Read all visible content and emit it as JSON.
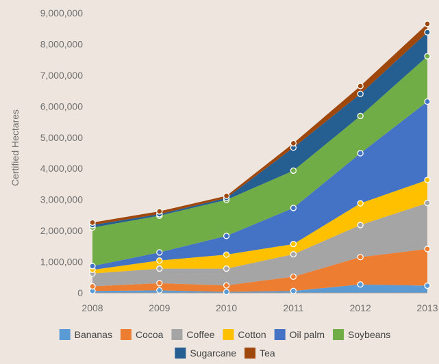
{
  "chart_data": {
    "type": "area",
    "stacked": true,
    "title": "",
    "xlabel": "",
    "ylabel": "Certified Hectares",
    "x": [
      "2008",
      "2009",
      "2010",
      "2011",
      "2012",
      "2013"
    ],
    "ylim": [
      0,
      9000000
    ],
    "yticks": [
      0,
      1000000,
      2000000,
      3000000,
      4000000,
      5000000,
      6000000,
      7000000,
      8000000,
      9000000
    ],
    "ytick_labels": [
      "0",
      "1,000,000",
      "2,000,000",
      "3,000,000",
      "4,000,000",
      "5,000,000",
      "6,000,000",
      "7,000,000",
      "8,000,000",
      "9,000,000"
    ],
    "grid": false,
    "legend_position": "bottom",
    "series": [
      {
        "name": "Bananas",
        "color": "#5b9bd5",
        "values": [
          60000,
          80000,
          30000,
          60000,
          270000,
          230000
        ]
      },
      {
        "name": "Cocoa",
        "color": "#ed7d31",
        "values": [
          150000,
          230000,
          210000,
          460000,
          880000,
          1180000
        ]
      },
      {
        "name": "Coffee",
        "color": "#a5a5a5",
        "values": [
          410000,
          470000,
          540000,
          720000,
          1030000,
          1480000
        ]
      },
      {
        "name": "Cotton",
        "color": "#ffc000",
        "values": [
          120000,
          260000,
          450000,
          330000,
          700000,
          740000
        ]
      },
      {
        "name": "Oil palm",
        "color": "#4472c4",
        "values": [
          120000,
          260000,
          600000,
          1160000,
          1610000,
          2520000
        ]
      },
      {
        "name": "Soybeans",
        "color": "#70ad47",
        "values": [
          1240000,
          1180000,
          1160000,
          1200000,
          1200000,
          1460000
        ]
      },
      {
        "name": "Sugarcane",
        "color": "#255e91",
        "values": [
          80000,
          50000,
          60000,
          740000,
          710000,
          770000
        ]
      },
      {
        "name": "Tea",
        "color": "#9e480e",
        "values": [
          80000,
          90000,
          70000,
          140000,
          250000,
          270000
        ]
      }
    ]
  }
}
